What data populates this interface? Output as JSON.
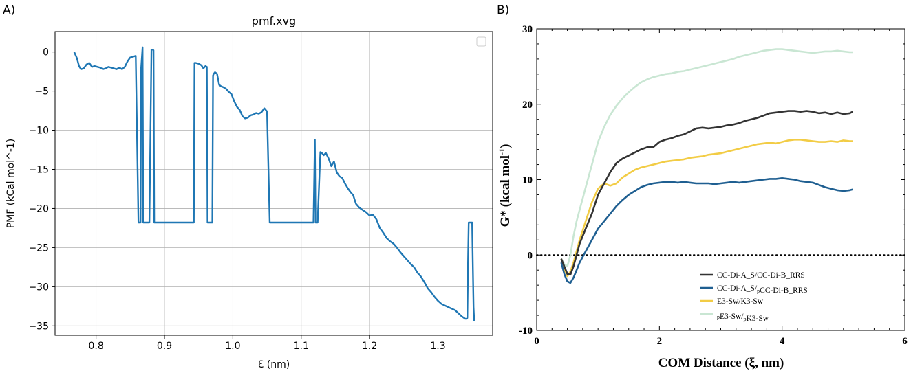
{
  "panel_labels": {
    "a": "A)",
    "b": "B)"
  },
  "chart_data": [
    {
      "type": "line",
      "title": "pmf.xvg",
      "xlabel": "Ɛ (nm)",
      "ylabel": "PMF (kCal mol^-1)",
      "xlim": [
        0.74,
        1.38
      ],
      "ylim": [
        -36.2,
        2.6
      ],
      "xticks": [
        0.8,
        0.9,
        1.0,
        1.1,
        1.2,
        1.3
      ],
      "xtick_labels": [
        "0.8",
        "0.9",
        "1.0",
        "1.1",
        "1.2",
        "1.3"
      ],
      "yticks": [
        0,
        -5,
        -10,
        -15,
        -20,
        -25,
        -30,
        -35
      ],
      "ytick_labels": [
        "0",
        "−5",
        "−10",
        "−15",
        "−20",
        "−25",
        "−30",
        "−35"
      ],
      "grid": true,
      "legend": "top-right (empty)",
      "color": "#1f77b4",
      "series": [
        {
          "name": "pmf",
          "x": [
            0.768,
            0.772,
            0.775,
            0.778,
            0.782,
            0.786,
            0.79,
            0.794,
            0.798,
            0.802,
            0.806,
            0.81,
            0.814,
            0.818,
            0.822,
            0.826,
            0.83,
            0.834,
            0.838,
            0.842,
            0.846,
            0.85,
            0.854,
            0.858,
            0.862,
            0.865,
            0.866,
            0.868,
            0.869,
            0.87,
            0.872,
            0.875,
            0.878,
            0.881,
            0.883,
            0.884,
            0.885,
            0.886,
            0.887,
            0.888,
            0.89,
            0.9,
            0.91,
            0.92,
            0.93,
            0.94,
            0.943,
            0.944,
            0.946,
            0.95,
            0.954,
            0.957,
            0.96,
            0.962,
            0.963,
            0.964,
            0.966,
            0.968,
            0.97,
            0.971,
            0.972,
            0.974,
            0.977,
            0.98,
            0.983,
            0.986,
            0.99,
            0.994,
            0.998,
            1.002,
            1.006,
            1.01,
            1.014,
            1.018,
            1.022,
            1.026,
            1.03,
            1.034,
            1.038,
            1.042,
            1.046,
            1.05,
            1.054,
            1.058,
            1.06,
            1.062,
            1.064,
            1.066,
            1.07,
            1.08,
            1.09,
            1.1,
            1.11,
            1.118,
            1.12,
            1.121,
            1.122,
            1.124,
            1.128,
            1.13,
            1.133,
            1.136,
            1.14,
            1.144,
            1.148,
            1.152,
            1.156,
            1.16,
            1.164,
            1.168,
            1.172,
            1.176,
            1.18,
            1.185,
            1.19,
            1.195,
            1.2,
            1.205,
            1.21,
            1.215,
            1.22,
            1.225,
            1.23,
            1.235,
            1.24,
            1.245,
            1.25,
            1.255,
            1.26,
            1.265,
            1.27,
            1.275,
            1.28,
            1.285,
            1.29,
            1.295,
            1.3,
            1.305,
            1.31,
            1.315,
            1.32,
            1.325,
            1.33,
            1.335,
            1.34,
            1.342,
            1.343,
            1.344,
            1.345,
            1.346,
            1.347,
            1.348,
            1.35,
            1.351,
            1.352,
            1.353
          ],
          "y": [
            0,
            -0.8,
            -1.8,
            -2.2,
            -2.1,
            -1.6,
            -1.4,
            -1.9,
            -1.8,
            -1.9,
            -2.0,
            -2.2,
            -2.1,
            -1.9,
            -2.0,
            -2.1,
            -2.2,
            -2.0,
            -2.2,
            -1.9,
            -1.2,
            -0.7,
            -0.6,
            -0.5,
            -21.8,
            -21.8,
            -2.0,
            0.6,
            -21.8,
            -21.8,
            -21.8,
            -21.8,
            -21.8,
            0.3,
            0.3,
            0.2,
            -21.8,
            -21.8,
            -21.8,
            -21.8,
            -21.8,
            -21.8,
            -21.8,
            -21.8,
            -21.8,
            -21.8,
            -21.8,
            -1.4,
            -1.4,
            -1.5,
            -1.7,
            -2.1,
            -1.8,
            -1.9,
            -21.8,
            -21.8,
            -21.8,
            -21.8,
            -21.8,
            -3.0,
            -2.8,
            -2.6,
            -2.8,
            -4.2,
            -4.4,
            -4.5,
            -4.7,
            -5.1,
            -5.4,
            -6.3,
            -7.0,
            -7.4,
            -8.2,
            -8.5,
            -8.4,
            -8.1,
            -8.0,
            -7.8,
            -7.9,
            -7.7,
            -7.2,
            -7.6,
            -21.8,
            -21.8,
            -21.8,
            -21.8,
            -21.8,
            -21.8,
            -21.8,
            -21.8,
            -21.8,
            -21.8,
            -21.8,
            -21.8,
            -11.2,
            -21.8,
            -21.8,
            -21.8,
            -12.8,
            -12.9,
            -13.2,
            -12.9,
            -13.6,
            -14.6,
            -14.0,
            -15.4,
            -15.9,
            -16.1,
            -16.8,
            -17.4,
            -17.9,
            -18.3,
            -19.4,
            -19.9,
            -20.2,
            -20.5,
            -20.9,
            -20.8,
            -21.4,
            -22.5,
            -23.1,
            -23.8,
            -24.2,
            -24.5,
            -25.0,
            -25.6,
            -26.1,
            -26.6,
            -27.1,
            -27.5,
            -28.2,
            -28.7,
            -29.4,
            -30.2,
            -30.7,
            -31.3,
            -31.8,
            -32.2,
            -32.4,
            -32.6,
            -32.8,
            -33.0,
            -33.4,
            -33.8,
            -34.1,
            -34.1,
            -34.0,
            -27.0,
            -21.8,
            -21.8,
            -21.8,
            -21.8,
            -21.8,
            -27.4,
            -32.6,
            -34.4
          ]
        }
      ]
    },
    {
      "type": "line",
      "xlabel": "COM Distance (ξ, nm)",
      "ylabel": "G* (kcal mol",
      "ylabel_sup": "-1",
      "ylabel_close": ")",
      "xlim": [
        0,
        6
      ],
      "ylim": [
        -10,
        30
      ],
      "xticks": [
        0,
        2,
        4,
        6
      ],
      "xtick_labels": [
        "0",
        "2",
        "4",
        "6"
      ],
      "yticks": [
        -10,
        0,
        10,
        20,
        30
      ],
      "ytick_labels": [
        "-10",
        "0",
        "10",
        "20",
        "30"
      ],
      "zero_line": {
        "y": 0,
        "style": "dotted"
      },
      "legend": "lower-middle",
      "x": [
        0.4,
        0.45,
        0.5,
        0.55,
        0.6,
        0.65,
        0.7,
        0.8,
        0.9,
        1.0,
        1.1,
        1.2,
        1.3,
        1.4,
        1.5,
        1.6,
        1.7,
        1.8,
        1.9,
        2.0,
        2.1,
        2.2,
        2.3,
        2.4,
        2.5,
        2.6,
        2.7,
        2.8,
        2.9,
        3.0,
        3.1,
        3.2,
        3.3,
        3.4,
        3.5,
        3.6,
        3.7,
        3.8,
        3.9,
        4.0,
        4.1,
        4.2,
        4.3,
        4.4,
        4.5,
        4.6,
        4.7,
        4.8,
        4.9,
        5.0,
        5.1,
        5.15
      ],
      "series": [
        {
          "name": "CC-Di-A_S/CC-Di-B_RRS",
          "legend_main": "CC-Di-A_S/CC-Di-B_RRS",
          "legend_sub": "",
          "legend_tail": "",
          "color": "#333333",
          "values": [
            -0.5,
            -1.5,
            -2.5,
            -2.6,
            -1.5,
            0.0,
            1.5,
            3.5,
            5.5,
            8.0,
            9.5,
            11.0,
            12.2,
            12.8,
            13.2,
            13.6,
            14.0,
            14.3,
            14.3,
            15.0,
            15.3,
            15.5,
            15.8,
            16.0,
            16.4,
            16.8,
            16.9,
            16.8,
            16.9,
            17.0,
            17.2,
            17.3,
            17.5,
            17.8,
            18.0,
            18.2,
            18.5,
            18.8,
            18.9,
            19.0,
            19.1,
            19.1,
            19.0,
            19.1,
            19.0,
            18.8,
            18.9,
            18.7,
            18.9,
            18.7,
            18.8,
            19.0
          ]
        },
        {
          "name": "CC-Di-A_S/pCC-Di-B_RRS",
          "legend_main": "CC-Di-A_S/",
          "legend_sub": "p",
          "legend_tail": "CC-Di-B_RRS",
          "color": "#1f5f91",
          "values": [
            -1.0,
            -2.5,
            -3.5,
            -3.7,
            -3.0,
            -2.0,
            -1.0,
            0.5,
            2.0,
            3.5,
            4.5,
            5.5,
            6.5,
            7.3,
            8.0,
            8.5,
            9.0,
            9.3,
            9.5,
            9.6,
            9.7,
            9.7,
            9.6,
            9.7,
            9.6,
            9.5,
            9.5,
            9.5,
            9.4,
            9.5,
            9.6,
            9.7,
            9.6,
            9.7,
            9.8,
            9.9,
            10.0,
            10.1,
            10.1,
            10.2,
            10.1,
            10.0,
            9.8,
            9.7,
            9.6,
            9.3,
            9.0,
            8.8,
            8.6,
            8.5,
            8.6,
            8.7
          ]
        },
        {
          "name": "E3-Sw/K3-Sw",
          "legend_main": "E3-Sw/K3-Sw",
          "legend_sub": "",
          "legend_tail": "",
          "color": "#f2cc45",
          "values": [
            -0.5,
            -1.8,
            -2.8,
            -2.2,
            -1.0,
            0.5,
            2.0,
            4.5,
            7.0,
            8.8,
            9.5,
            9.2,
            9.5,
            10.3,
            10.8,
            11.3,
            11.6,
            11.8,
            12.0,
            12.2,
            12.4,
            12.5,
            12.6,
            12.7,
            12.9,
            13.0,
            13.1,
            13.3,
            13.4,
            13.5,
            13.7,
            13.9,
            14.1,
            14.3,
            14.5,
            14.7,
            14.8,
            14.9,
            14.8,
            15.0,
            15.2,
            15.3,
            15.3,
            15.2,
            15.1,
            15.0,
            15.0,
            15.1,
            15.0,
            15.2,
            15.1,
            15.1
          ]
        },
        {
          "name": "pE3-Sw/pK3-Sw",
          "legend_main": "",
          "legend_sub": "p",
          "legend_tail": "E3-Sw/",
          "legend_sub2": "p",
          "legend_tail2": "K3-Sw",
          "color": "#c9e6d3",
          "values": [
            -0.5,
            -1.2,
            -1.5,
            0.0,
            2.5,
            4.5,
            6.0,
            9.0,
            12.0,
            15.0,
            17.0,
            18.6,
            19.8,
            20.8,
            21.6,
            22.3,
            22.9,
            23.3,
            23.6,
            23.8,
            24.0,
            24.1,
            24.3,
            24.4,
            24.6,
            24.8,
            25.0,
            25.2,
            25.4,
            25.6,
            25.8,
            26.0,
            26.3,
            26.5,
            26.7,
            26.9,
            27.1,
            27.2,
            27.3,
            27.3,
            27.2,
            27.1,
            27.0,
            26.9,
            26.8,
            26.9,
            27.0,
            27.0,
            27.1,
            27.0,
            26.9,
            26.9
          ]
        }
      ]
    }
  ]
}
